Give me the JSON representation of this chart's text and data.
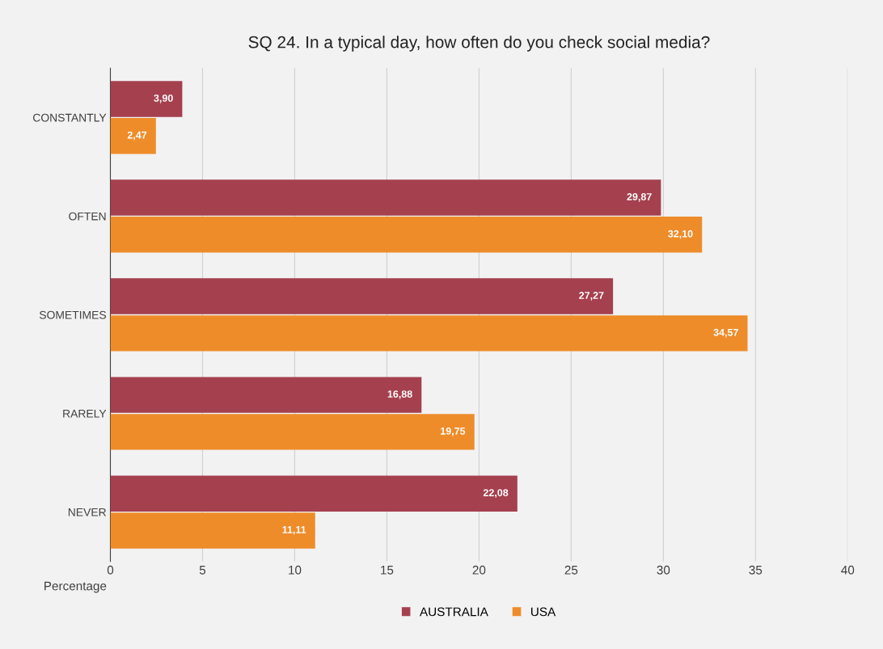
{
  "chart_data": {
    "type": "bar",
    "orientation": "horizontal",
    "title": "SQ 24. In a typical day, how often do you check social media?",
    "xlabel": "Percentage",
    "categories": [
      "CONSTANTLY",
      "OFTEN",
      "SOMETIMES",
      "RARELY",
      "NEVER"
    ],
    "series": [
      {
        "name": "AUSTRALIA",
        "color": "#a5404f",
        "values": [
          3.9,
          29.87,
          27.27,
          16.88,
          22.08
        ],
        "value_labels": [
          "3,90",
          "29,87",
          "27,27",
          "16,88",
          "22,08"
        ]
      },
      {
        "name": "USA",
        "color": "#ee8c2a",
        "values": [
          2.47,
          32.1,
          34.57,
          19.75,
          11.11
        ],
        "value_labels": [
          "2,47",
          "32,10",
          "34,57",
          "19,75",
          "11,11"
        ]
      }
    ],
    "xlim": [
      0,
      40
    ],
    "xticks": [
      0,
      5,
      10,
      15,
      20,
      25,
      30,
      35,
      40
    ],
    "grid": "x",
    "legend": "bottom"
  }
}
